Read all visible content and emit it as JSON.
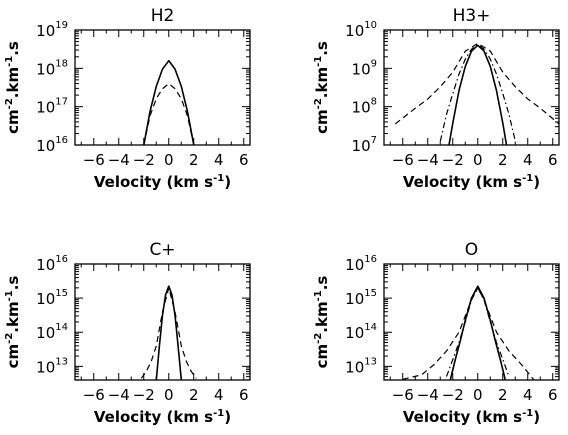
{
  "chart_data": [
    {
      "type": "line",
      "title": "H2",
      "xlabel": "Velocity (km s",
      "xlabel_sup": "-1",
      "xlabel_end": ")",
      "ylabel": "cm",
      "ylabel_parts": [
        ".km",
        ".s"
      ],
      "ylabel_sups": [
        "-2",
        "-1"
      ],
      "xlim": [
        -7.5,
        6.5
      ],
      "ylog_range": [
        16,
        19
      ],
      "xticks": [
        "−6",
        "−4",
        "−2",
        "0",
        "2",
        "4",
        "6"
      ],
      "xtick_values": [
        -6,
        -4,
        -2,
        0,
        2,
        4,
        6
      ],
      "yticks_exp": [
        "16",
        "17",
        "18",
        "19"
      ],
      "ytick_base": "10",
      "series": [
        {
          "style": "solid",
          "x": [
            -2.0,
            -1.5,
            -1.0,
            -0.5,
            0,
            0.5,
            1.0,
            1.5,
            2.0
          ],
          "logy": [
            16.0,
            16.87,
            17.53,
            17.98,
            18.2,
            17.98,
            17.53,
            16.87,
            16.0
          ]
        },
        {
          "style": "dashed",
          "x": [
            -2.0,
            -1.5,
            -1.0,
            -0.5,
            0,
            0.5,
            1.0,
            1.5,
            2.0
          ],
          "logy": [
            16.0,
            16.76,
            17.21,
            17.47,
            17.6,
            17.47,
            17.21,
            16.76,
            16.0
          ]
        }
      ]
    },
    {
      "type": "line",
      "title": "H3+",
      "xlabel": "Velocity (km s",
      "xlabel_sup": "-1",
      "xlabel_end": ")",
      "ylabel": "cm",
      "ylabel_parts": [
        ".km",
        ".s"
      ],
      "ylabel_sups": [
        "-2",
        "-1"
      ],
      "xlim": [
        -7.5,
        6.5
      ],
      "ylog_range": [
        7,
        10
      ],
      "xticks": [
        "−6",
        "−4",
        "−2",
        "0",
        "2",
        "4",
        "6"
      ],
      "xtick_values": [
        -6,
        -4,
        -2,
        0,
        2,
        4,
        6
      ],
      "yticks_exp": [
        "7",
        "8",
        "9",
        "10"
      ],
      "ytick_base": "10",
      "series": [
        {
          "style": "solid",
          "x": [
            -2.3,
            -2.0,
            -1.5,
            -1.0,
            -0.5,
            0,
            0.5,
            1.0,
            1.5,
            2.0,
            2.3
          ],
          "logy": [
            7.0,
            7.57,
            8.42,
            9.05,
            9.45,
            9.6,
            9.45,
            9.05,
            8.42,
            7.57,
            7.0
          ]
        },
        {
          "style": "dashdot",
          "x": [
            -3.0,
            -2.5,
            -2.0,
            -1.5,
            -1.0,
            -0.5,
            0,
            0.5,
            1.0,
            1.5,
            2.0,
            2.5,
            3.0
          ],
          "logy": [
            7.1,
            7.8,
            8.34,
            8.85,
            9.24,
            9.5,
            9.62,
            9.5,
            9.24,
            8.85,
            8.34,
            7.8,
            7.1
          ]
        },
        {
          "style": "dashed",
          "x": [
            -6.6,
            -5.0,
            -4.0,
            -3.0,
            -2.0,
            -1.0,
            0,
            1.0,
            2.0,
            3.0,
            4.0,
            5.0,
            6.5
          ],
          "logy": [
            7.55,
            7.96,
            8.2,
            8.52,
            8.9,
            9.45,
            9.65,
            9.45,
            8.9,
            8.52,
            8.2,
            7.96,
            7.55
          ]
        }
      ]
    },
    {
      "type": "line",
      "title": "C+",
      "xlabel": "Velocity (km s",
      "xlabel_sup": "-1",
      "xlabel_end": ")",
      "ylabel": "cm",
      "ylabel_parts": [
        ".km",
        ".s"
      ],
      "ylabel_sups": [
        "-2",
        "-1"
      ],
      "xlim": [
        -7.5,
        6.5
      ],
      "ylog_range": [
        12.6,
        16
      ],
      "xticks": [
        "−6",
        "−4",
        "−2",
        "0",
        "2",
        "4",
        "6"
      ],
      "xtick_values": [
        -6,
        -4,
        -2,
        0,
        2,
        4,
        6
      ],
      "yticks_exp": [
        "13",
        "14",
        "15",
        "16"
      ],
      "ytick_base": "10",
      "series": [
        {
          "style": "solid",
          "x": [
            -1.0,
            -0.75,
            -0.5,
            -0.25,
            0,
            0.25,
            0.5,
            0.75,
            1.0
          ],
          "logy": [
            12.6,
            13.6,
            14.5,
            15.1,
            15.35,
            15.1,
            14.5,
            13.6,
            12.6
          ]
        },
        {
          "style": "dashed",
          "x": [
            -2.2,
            -1.8,
            -1.4,
            -1.0,
            -0.5,
            0,
            0.5,
            1.0,
            1.4,
            1.8,
            2.2
          ],
          "logy": [
            12.65,
            12.85,
            13.15,
            13.6,
            14.6,
            15.3,
            14.6,
            13.6,
            13.15,
            12.85,
            12.65
          ]
        }
      ]
    },
    {
      "type": "line",
      "title": "O",
      "xlabel": "Velocity (km s",
      "xlabel_sup": "-1",
      "xlabel_end": ")",
      "ylabel": "cm",
      "ylabel_parts": [
        ".km",
        ".s"
      ],
      "ylabel_sups": [
        "-2",
        "-1"
      ],
      "xlim": [
        -7.5,
        6.5
      ],
      "ylog_range": [
        12.6,
        16
      ],
      "xticks": [
        "−6",
        "−4",
        "−2",
        "0",
        "2",
        "4",
        "6"
      ],
      "xtick_values": [
        -6,
        -4,
        -2,
        0,
        2,
        4,
        6
      ],
      "yticks_exp": [
        "13",
        "14",
        "15",
        "16"
      ],
      "ytick_base": "10",
      "series": [
        {
          "style": "solid",
          "x": [
            -2.2,
            -1.8,
            -1.4,
            -1.0,
            -0.5,
            0,
            0.5,
            1.0,
            1.4,
            1.8,
            2.2
          ],
          "logy": [
            12.6,
            13.2,
            13.75,
            14.35,
            15.0,
            15.35,
            15.0,
            14.35,
            13.75,
            13.2,
            12.6
          ]
        },
        {
          "style": "dashdot",
          "x": [
            -2.5,
            -2.0,
            -1.5,
            -1.0,
            -0.5,
            0,
            0.5,
            1.0,
            1.5,
            2.0,
            2.5
          ],
          "logy": [
            12.7,
            13.2,
            13.7,
            14.3,
            14.95,
            15.3,
            14.95,
            14.3,
            13.7,
            13.2,
            12.7
          ]
        },
        {
          "style": "dashed",
          "x": [
            -6.0,
            -4.5,
            -3.5,
            -2.5,
            -1.5,
            -0.5,
            0,
            0.5,
            1.5,
            2.5,
            3.5,
            4.5
          ],
          "logy": [
            12.62,
            12.75,
            13.05,
            13.45,
            14.0,
            14.95,
            15.3,
            14.95,
            14.0,
            13.45,
            13.05,
            12.6
          ]
        }
      ]
    }
  ]
}
